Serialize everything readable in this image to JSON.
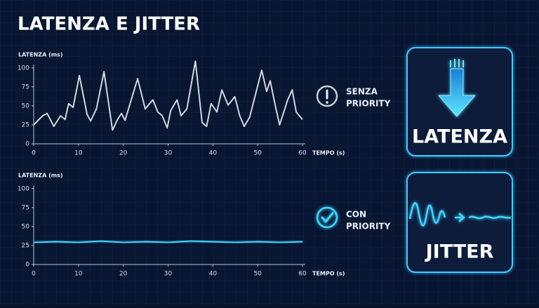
{
  "title": "LATENZA E JITTER",
  "chart_data": [
    {
      "type": "line",
      "y_label": "LATENZA (ms)",
      "x_label": "TEMPO (s)",
      "color": "#cfd6e0",
      "x": [
        0,
        2,
        3,
        4.5,
        6,
        7,
        7.8,
        8.8,
        10.2,
        11.9,
        12.7,
        14,
        15.7,
        17.6,
        18.7,
        19.6,
        20.4,
        23.2,
        24.9,
        26.6,
        27.7,
        28.7,
        29.8,
        30.6,
        32,
        32.9,
        34.2,
        36.1,
        37.6,
        38.6,
        39.6,
        40.9,
        42,
        43.4,
        44.9,
        46,
        47,
        48.2,
        50.9,
        52,
        52.8,
        53.9,
        54.9,
        56.7,
        57.7,
        58.6,
        60
      ],
      "values": [
        25,
        37,
        40,
        23,
        37,
        32,
        53,
        48,
        90,
        39,
        30,
        46,
        95,
        18,
        32,
        40,
        31,
        86,
        46,
        58,
        42,
        37,
        21,
        44,
        58,
        37,
        46,
        109,
        28,
        23,
        53,
        42,
        71,
        51,
        62,
        37,
        23,
        35,
        97,
        69,
        83,
        51,
        25,
        58,
        71,
        42,
        32
      ],
      "xlim": [
        0,
        60
      ],
      "ylim": [
        0,
        110
      ],
      "xticks": [
        0,
        10,
        20,
        30,
        40,
        50,
        60
      ],
      "yticks": [
        0,
        25,
        50,
        75,
        100
      ]
    },
    {
      "type": "line",
      "y_label": "LATENZA (ms)",
      "x_label": "TEMPO (s)",
      "color": "#40d4ff",
      "x": [
        0,
        5,
        10,
        15,
        20,
        25,
        30,
        35,
        40,
        45,
        50,
        55,
        60
      ],
      "values": [
        29,
        30,
        29,
        31,
        29,
        30,
        29,
        31,
        30,
        29,
        30,
        29,
        30
      ],
      "xlim": [
        0,
        60
      ],
      "ylim": [
        0,
        110
      ],
      "xticks": [
        0,
        10,
        20,
        30,
        40,
        50,
        60
      ],
      "yticks": [
        0,
        25,
        50,
        75,
        100
      ]
    }
  ],
  "status": [
    {
      "lines": [
        "SENZA",
        "PRIORITY"
      ]
    },
    {
      "lines": [
        "CON",
        "PRIORITY"
      ]
    }
  ],
  "panels": [
    {
      "label": "LATENZA"
    },
    {
      "label": "JITTER"
    }
  ]
}
